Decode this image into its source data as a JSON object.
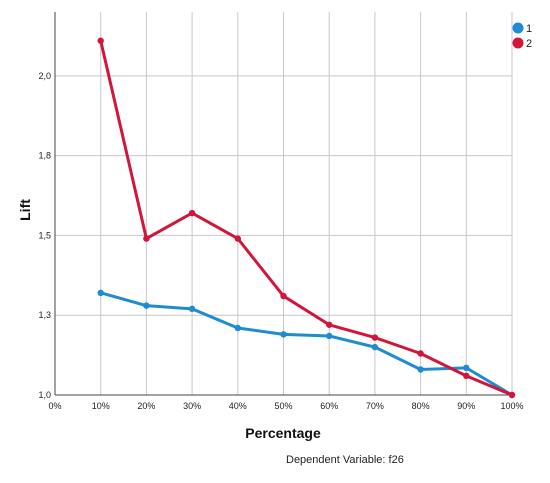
{
  "chart_data": {
    "type": "line",
    "title": "",
    "xlabel": "Percentage",
    "ylabel": "Lift",
    "footnote": "Dependent Variable: f26",
    "x": [
      10,
      20,
      30,
      40,
      50,
      60,
      70,
      80,
      90,
      100
    ],
    "x_tick_labels": [
      "0%",
      "10%",
      "20%",
      "30%",
      "40%",
      "50%",
      "60%",
      "70%",
      "80%",
      "90%",
      "100%"
    ],
    "x_tick_values": [
      0,
      10,
      20,
      30,
      40,
      50,
      60,
      70,
      80,
      90,
      100
    ],
    "y_tick_labels": [
      "1,0",
      "1,3",
      "1,5",
      "1,8",
      "2,0"
    ],
    "y_tick_values": [
      1.0,
      1.25,
      1.5,
      1.75,
      2.0
    ],
    "xlim": [
      0,
      100
    ],
    "ylim": [
      1.0,
      2.2
    ],
    "grid": true,
    "legend_position": "top-right",
    "series": [
      {
        "name": "1",
        "color": "#1f8bd0",
        "values": [
          1.32,
          1.28,
          1.27,
          1.21,
          1.19,
          1.185,
          1.15,
          1.08,
          1.085,
          1.0
        ]
      },
      {
        "name": "2",
        "color": "#d2163a",
        "values": [
          2.11,
          1.49,
          1.57,
          1.49,
          1.31,
          1.22,
          1.18,
          1.13,
          1.06,
          1.0
        ]
      }
    ]
  }
}
